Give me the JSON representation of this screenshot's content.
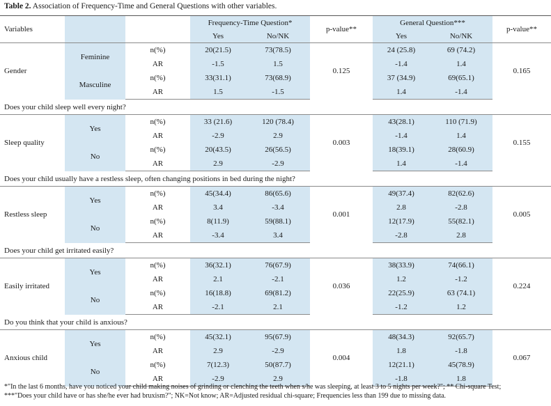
{
  "caption": {
    "label": "Table 2.",
    "text": " Association of Frequency-Time and General Questions with other variables."
  },
  "header": {
    "variables": "Variables",
    "ft_question": "Frequency-Time Question*",
    "general_question": "General Question***",
    "yes": "Yes",
    "no": "No/NK",
    "pvalue1": "p-value**",
    "pvalue2": "p-value**"
  },
  "gender": {
    "label": "Gender",
    "p1": "0.125",
    "p2": "0.165",
    "groups": [
      {
        "name": "Feminine",
        "n": {
          "stat": "n(%)",
          "ft_yes": "20(21.5)",
          "ft_no": "73(78.5)",
          "g_yes": "24 (25.8)",
          "g_no": "69 (74.2)"
        },
        "ar": {
          "stat": "AR",
          "ft_yes": "-1.5",
          "ft_no": "1.5",
          "g_yes": "-1.4",
          "g_no": "1.4"
        }
      },
      {
        "name": "Masculine",
        "n": {
          "stat": "n(%)",
          "ft_yes": "33(31.1)",
          "ft_no": "73(68.9)",
          "g_yes": "37 (34.9)",
          "g_no": "69(65.1)"
        },
        "ar": {
          "stat": "AR",
          "ft_yes": "1.5",
          "ft_no": "-1.5",
          "g_yes": "1.4",
          "g_no": "-1.4"
        }
      }
    ]
  },
  "sections": [
    {
      "question": "Does your child sleep well every night?",
      "label": "Sleep quality",
      "p1": "0.003",
      "p2": "0.155",
      "groups": [
        {
          "name": "Yes",
          "n": {
            "stat": "n(%)",
            "ft_yes": "33 (21.6)",
            "ft_no": "120 (78.4)",
            "g_yes": "43(28.1)",
            "g_no": "110 (71.9)"
          },
          "ar": {
            "stat": "AR",
            "ft_yes": "-2.9",
            "ft_no": "2.9",
            "g_yes": "-1.4",
            "g_no": "1.4"
          }
        },
        {
          "name": "No",
          "n": {
            "stat": "n(%)",
            "ft_yes": "20(43.5)",
            "ft_no": "26(56.5)",
            "g_yes": "18(39.1)",
            "g_no": "28(60.9)"
          },
          "ar": {
            "stat": "AR",
            "ft_yes": "2.9",
            "ft_no": "-2.9",
            "g_yes": "1.4",
            "g_no": "-1.4"
          }
        }
      ]
    },
    {
      "question": "Does your child usually have a restless sleep, often changing positions in bed during the night?",
      "label": "Restless sleep",
      "p1": "0.001",
      "p2": "0.005",
      "groups": [
        {
          "name": "Yes",
          "n": {
            "stat": "n(%)",
            "ft_yes": "45(34.4)",
            "ft_no": "86(65.6)",
            "g_yes": "49(37.4)",
            "g_no": "82(62.6)"
          },
          "ar": {
            "stat": "AR",
            "ft_yes": "3.4",
            "ft_no": "-3.4",
            "g_yes": "2.8",
            "g_no": "-2.8"
          }
        },
        {
          "name": "No",
          "n": {
            "stat": "n(%)",
            "ft_yes": "8(11.9)",
            "ft_no": "59(88.1)",
            "g_yes": "12(17.9)",
            "g_no": "55(82.1)"
          },
          "ar": {
            "stat": "AR",
            "ft_yes": "-3.4",
            "ft_no": "3.4",
            "g_yes": "-2.8",
            "g_no": "2.8"
          }
        }
      ]
    },
    {
      "question": "Does your child get irritated easily?",
      "label": "Easily irritated",
      "p1": "0.036",
      "p2": "0.224",
      "groups": [
        {
          "name": "Yes",
          "n": {
            "stat": "n(%)",
            "ft_yes": "36(32.1)",
            "ft_no": "76(67.9)",
            "g_yes": "38(33.9)",
            "g_no": "74(66.1)"
          },
          "ar": {
            "stat": "AR",
            "ft_yes": "2.1",
            "ft_no": "-2.1",
            "g_yes": "1.2",
            "g_no": "-1.2"
          }
        },
        {
          "name": "No",
          "n": {
            "stat": "n(%)",
            "ft_yes": "16(18.8)",
            "ft_no": "69(81.2)",
            "g_yes": "22(25.9)",
            "g_no": "63 (74.1)"
          },
          "ar": {
            "stat": "AR",
            "ft_yes": "-2.1",
            "ft_no": "2.1",
            "g_yes": "-1.2",
            "g_no": "1.2"
          }
        }
      ]
    },
    {
      "question": "Do you think that your child is anxious?",
      "label": "Anxious child",
      "p1": "0.004",
      "p2": "0.067",
      "groups": [
        {
          "name": "Yes",
          "n": {
            "stat": "n(%)",
            "ft_yes": "45(32.1)",
            "ft_no": "95(67.9)",
            "g_yes": "48(34.3)",
            "g_no": "92(65.7)"
          },
          "ar": {
            "stat": "AR",
            "ft_yes": "2.9",
            "ft_no": "-2.9",
            "g_yes": "1.8",
            "g_no": "-1.8"
          }
        },
        {
          "name": "No",
          "n": {
            "stat": "n(%)",
            "ft_yes": "7(12.3)",
            "ft_no": "50(87.7)",
            "g_yes": "12(21.1)",
            "g_no": "45(78.9)"
          },
          "ar": {
            "stat": "AR",
            "ft_yes": "-2.9",
            "ft_no": "2.9",
            "g_yes": "-1.8",
            "g_no": "1.8"
          }
        }
      ]
    }
  ],
  "footnote": {
    "line1": "*\"In the last 6 months, have you noticed your child making noises of grinding or clenching the teeth when s/he was sleeping, at least 3 to 5 nights per week?\"; ** Chi-square Test;",
    "line2": "***\"Does your child have or has she/he ever had bruxism?\"; NK=Not know; AR=Adjusted residual chi-square; Frequencies less than 199 due to missing data."
  }
}
